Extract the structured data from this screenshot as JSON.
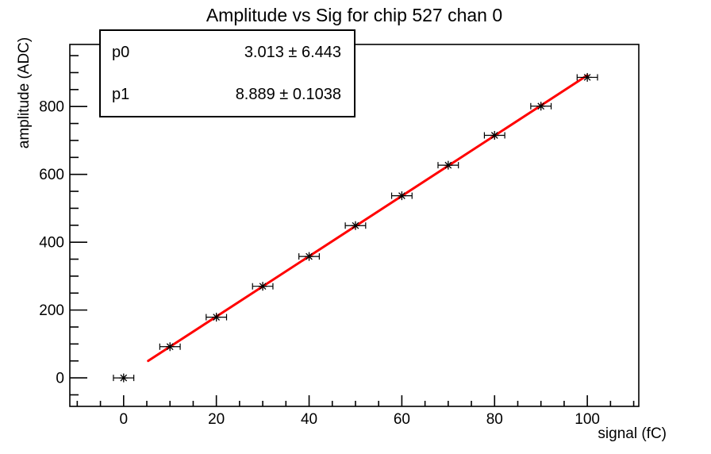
{
  "title": "Amplitude vs Sig for chip 527 chan 0",
  "stats": {
    "rows": [
      {
        "name": "p0",
        "value": "3.013 ± 6.443"
      },
      {
        "name": "p1",
        "value": "8.889 ± 0.1038"
      }
    ]
  },
  "chart_data": {
    "type": "scatter",
    "title": "Amplitude vs Sig for chip 527 chan 0",
    "xlabel": "signal (fC)",
    "ylabel": "amplitude (ADC)",
    "x": [
      0,
      10,
      20,
      30,
      40,
      50,
      60,
      70,
      80,
      90,
      100
    ],
    "y": [
      0,
      92,
      179,
      270,
      358,
      449,
      537,
      627,
      715,
      801,
      886
    ],
    "x_error": 1.6,
    "xlim": [
      -11.6,
      111.1
    ],
    "ylim": [
      -84,
      983
    ],
    "x_major_ticks": [
      0,
      20,
      40,
      60,
      80,
      100
    ],
    "x_minor_step": 5,
    "y_major_ticks": [
      0,
      200,
      400,
      600,
      800
    ],
    "y_minor_step": 50,
    "grid": false,
    "legend": "none",
    "fit": {
      "p0": 3.013,
      "p1": 8.889,
      "x_start": 5.3,
      "x_end": 100,
      "color": "#ff0000"
    },
    "marker": {
      "style": "asterisk",
      "color": "#000000"
    },
    "frame_color": "#000000",
    "background_color": "#ffffff"
  }
}
